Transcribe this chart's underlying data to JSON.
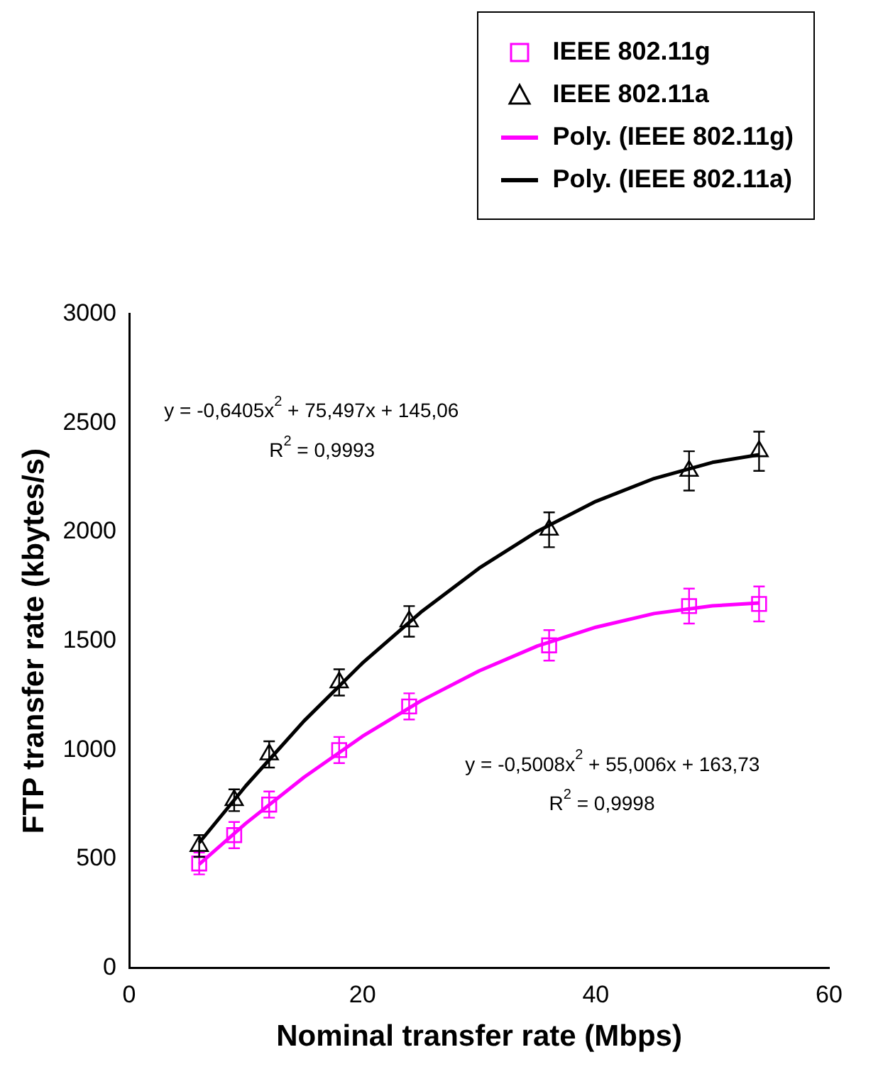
{
  "chart_data": {
    "type": "scatter",
    "xlabel": "Nominal transfer rate (Mbps)",
    "ylabel": "FTP transfer rate (kbytes/s)",
    "xlim": [
      0,
      60
    ],
    "xticks": [
      0,
      20,
      40,
      60
    ],
    "ylim": [
      0,
      3000
    ],
    "yticks": [
      0,
      500,
      1000,
      1500,
      2000,
      2500,
      3000
    ],
    "grid": false,
    "legend": "top right",
    "series": [
      {
        "name": "IEEE 802.11g",
        "color": "#ff00ff",
        "marker": "square",
        "x": [
          6,
          9,
          12,
          18,
          24,
          36,
          48,
          54
        ],
        "values": [
          480,
          610,
          750,
          1000,
          1200,
          1480,
          1660,
          1670
        ],
        "errors": [
          50,
          60,
          60,
          60,
          60,
          70,
          80,
          80
        ]
      },
      {
        "name": "IEEE 802.11a",
        "color": "#000000",
        "marker": "triangle",
        "x": [
          6,
          9,
          12,
          18,
          24,
          36,
          48,
          54
        ],
        "values": [
          560,
          770,
          980,
          1310,
          1590,
          2010,
          2280,
          2370
        ],
        "errors": [
          50,
          50,
          60,
          60,
          70,
          80,
          90,
          90
        ]
      },
      {
        "name": "Poly. (IEEE 802.11g)",
        "type": "line",
        "color": "#ff00ff",
        "marker": "none",
        "x": [
          6,
          10,
          15,
          20,
          25,
          30,
          35,
          40,
          45,
          50,
          54
        ],
        "values": [
          476,
          664,
          876,
          1063,
          1225,
          1363,
          1477,
          1563,
          1626,
          1661,
          1674
        ]
      },
      {
        "name": "Poly. (IEEE 802.11a)",
        "type": "line",
        "color": "#000000",
        "marker": "none",
        "x": [
          6,
          10,
          15,
          20,
          25,
          30,
          35,
          40,
          45,
          50,
          54
        ],
        "values": [
          575,
          836,
          1134,
          1399,
          1632,
          1834,
          2003,
          2140,
          2245,
          2319,
          2354
        ]
      }
    ],
    "annotations": [
      "y = -0,6405x$^{2}$ + 75,497x + 145,06",
      "R$^{2}$ = 0,9993",
      "y = -0,5008x$^{2}$ + 55,006x + 163,73",
      "R$^{2}$ = 0,9998"
    ]
  }
}
